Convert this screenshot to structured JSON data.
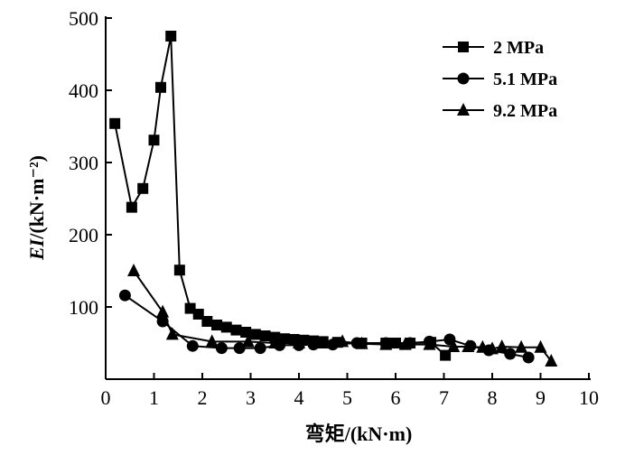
{
  "chart_data": {
    "type": "line",
    "title": "",
    "xlabel": "弯矩/(kN·m)",
    "ylabel_italic": "EI",
    "ylabel_rest": "/(kN·m⁻²)",
    "xlim": [
      0,
      10
    ],
    "ylim": [
      0,
      500
    ],
    "xticks": [
      "0",
      "1",
      "2",
      "3",
      "4",
      "5",
      "6",
      "7",
      "8",
      "9",
      "10"
    ],
    "yticks": [
      "100",
      "200",
      "300",
      "400",
      "500"
    ],
    "grid": false,
    "legend_position": "top-right",
    "series": [
      {
        "name": "2 MPa",
        "marker": "square",
        "x": [
          0.19,
          0.54,
          0.77,
          1.0,
          1.14,
          1.35,
          1.53,
          1.75,
          1.92,
          2.1,
          2.3,
          2.5,
          2.7,
          2.9,
          3.1,
          3.3,
          3.5,
          3.7,
          3.9,
          4.1,
          4.3,
          4.5,
          4.8,
          5.3,
          5.8,
          6.0,
          6.3,
          6.73,
          7.03
        ],
        "y": [
          354,
          238,
          264,
          331,
          404,
          475,
          151,
          98,
          90,
          80,
          75,
          72,
          68,
          65,
          62,
          60,
          58,
          56,
          55,
          54,
          53,
          52,
          51,
          50,
          50,
          50,
          50,
          51,
          33
        ]
      },
      {
        "name": "5.1 MPa",
        "marker": "circle",
        "x": [
          0.4,
          1.18,
          1.8,
          2.4,
          2.77,
          3.2,
          3.6,
          4.0,
          4.3,
          4.7,
          5.2,
          5.8,
          6.3,
          6.7,
          7.12,
          7.55,
          7.93,
          8.37,
          8.75
        ],
        "y": [
          116,
          80,
          46,
          43,
          43,
          43,
          47,
          47,
          48,
          48,
          50,
          50,
          50,
          52,
          55,
          46,
          40,
          35,
          30
        ]
      },
      {
        "name": "9.2 MPa",
        "marker": "triangle",
        "x": [
          0.58,
          1.18,
          1.38,
          2.2,
          2.95,
          3.5,
          4.0,
          4.5,
          4.9,
          5.3,
          5.8,
          6.2,
          6.7,
          7.2,
          7.5,
          7.8,
          8.0,
          8.2,
          8.6,
          9.0,
          9.22
        ],
        "y": [
          150,
          93,
          62,
          52,
          52,
          50,
          50,
          50,
          52,
          49,
          48,
          48,
          48,
          45,
          45,
          44,
          42,
          45,
          44,
          44,
          25
        ]
      }
    ]
  }
}
